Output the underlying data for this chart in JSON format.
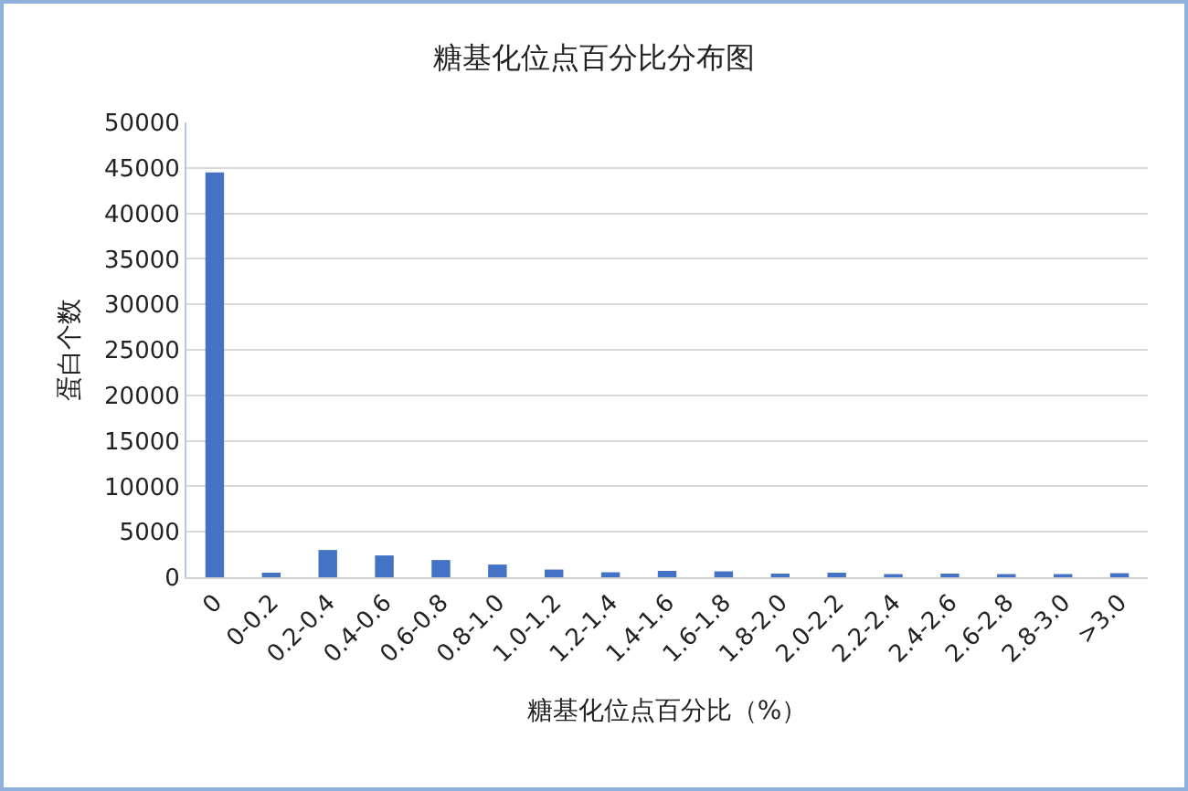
{
  "chart_data": {
    "type": "bar",
    "title": "糖基化位点百分比分布图",
    "xlabel": "糖基化位点百分比（%）",
    "ylabel": "蛋白个数",
    "categories": [
      "0",
      "0-0.2",
      "0.2-0.4",
      "0.4-0.6",
      "0.6-0.8",
      "0.8-1.0",
      "1.0-1.2",
      "1.2-1.4",
      "1.4-1.6",
      "1.6-1.8",
      "1.8-2.0",
      "2.0-2.2",
      "2.2-2.4",
      "2.4-2.6",
      "2.6-2.8",
      "2.8-3.0",
      ">3.0"
    ],
    "values": [
      44500,
      500,
      3000,
      2400,
      1900,
      1400,
      850,
      550,
      700,
      650,
      400,
      500,
      350,
      400,
      350,
      350,
      450
    ],
    "color": "#4472c4",
    "ylim": [
      0,
      50000
    ],
    "yticks": [
      0,
      5000,
      10000,
      15000,
      20000,
      25000,
      30000,
      35000,
      40000,
      45000,
      50000
    ],
    "grid": "y",
    "legend": false
  }
}
